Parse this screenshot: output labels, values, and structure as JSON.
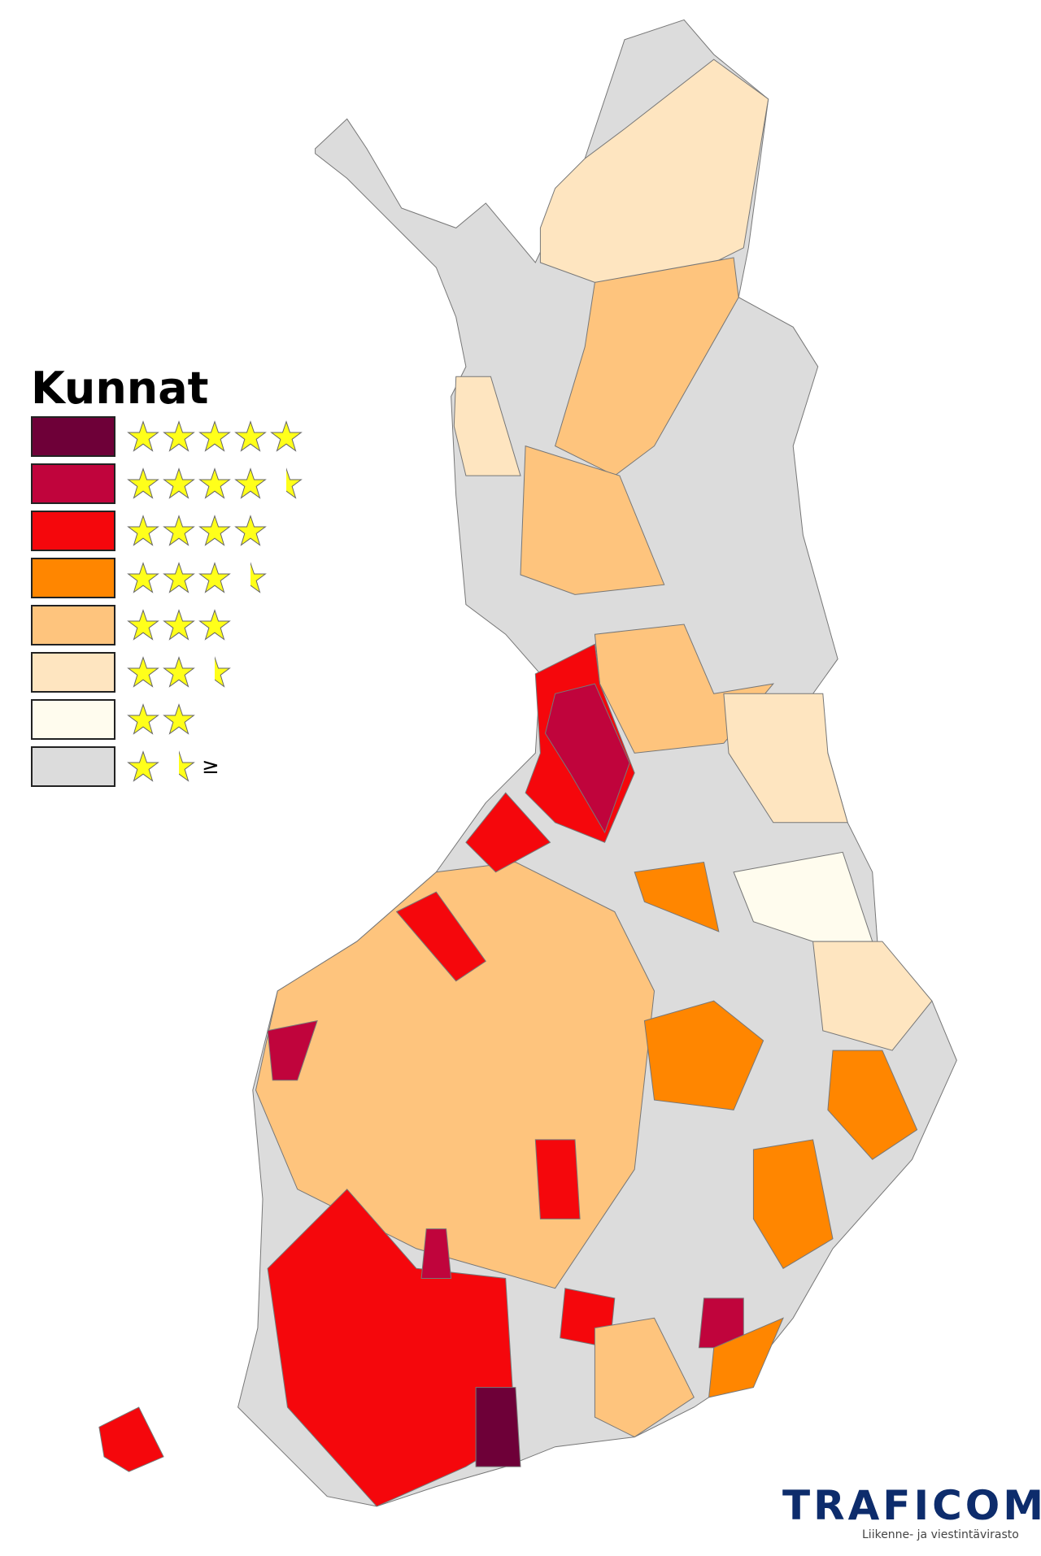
{
  "legend": {
    "title": "Kunnat",
    "items": [
      {
        "color": "#6e0038",
        "stars": 5,
        "suffix": ""
      },
      {
        "color": "#c0043c",
        "stars": 4.5,
        "suffix": ""
      },
      {
        "color": "#f5070c",
        "stars": 4,
        "suffix": ""
      },
      {
        "color": "#ff8600",
        "stars": 3.5,
        "suffix": ""
      },
      {
        "color": "#fec47d",
        "stars": 3,
        "suffix": ""
      },
      {
        "color": "#fee5c0",
        "stars": 2.5,
        "suffix": ""
      },
      {
        "color": "#fffcee",
        "stars": 2,
        "suffix": ""
      },
      {
        "color": "#dcdcdc",
        "stars": 1.5,
        "suffix": "≥"
      }
    ]
  },
  "colors": {
    "star_fill": "#ffff1a",
    "border": "#777777",
    "no_data": "#dcdcdc"
  },
  "logo": {
    "name": "TRAFICOM",
    "subtitle": "Liikenne- ja viestintävirasto"
  }
}
